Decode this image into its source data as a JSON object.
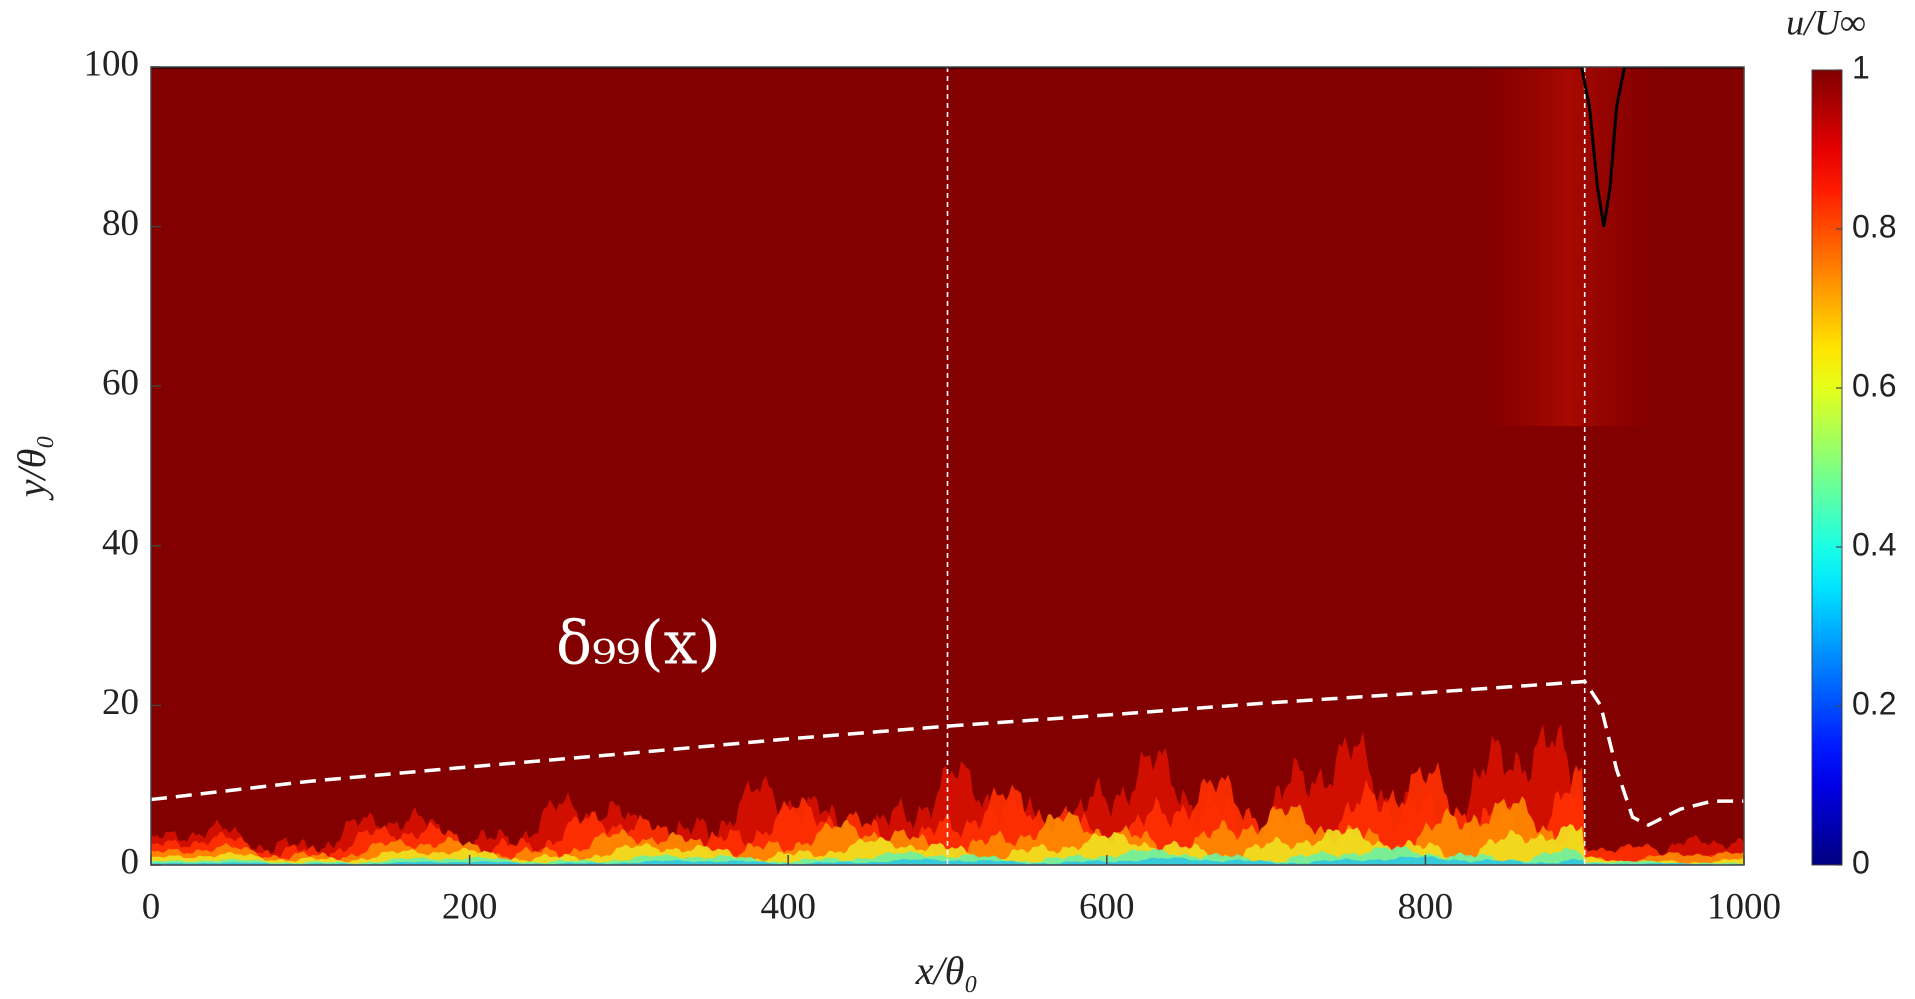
{
  "chart_data": {
    "type": "field",
    "x_label": "x/θ₀",
    "y_label": "y/θ₀",
    "annotation": "δ₉₉(x)",
    "colorbar_label": "u/U∞",
    "colormap": "jet",
    "clim": [
      0,
      1
    ],
    "cticks": [
      0,
      0.2,
      0.4,
      0.6,
      0.8,
      1
    ],
    "xlim": [
      0,
      1000
    ],
    "ylim": [
      0,
      100
    ],
    "xticks": [
      0,
      200,
      400,
      600,
      800,
      1000
    ],
    "yticks": [
      0,
      20,
      40,
      60,
      80,
      100
    ],
    "vlines": [
      500,
      900
    ],
    "series": [
      {
        "color": "#ffffff",
        "dashed": true,
        "x": [
          0,
          100,
          200,
          300,
          400,
          500,
          600,
          700,
          800,
          880,
          900,
          910,
          920,
          930,
          940,
          960,
          980,
          1000
        ],
        "values": [
          8.2,
          10.5,
          12.3,
          14,
          15.8,
          17.4,
          18.8,
          20.3,
          21.6,
          22.7,
          23,
          20,
          12,
          6,
          5,
          7,
          8,
          8
        ]
      },
      {
        "color": "#000000",
        "dashed": false,
        "x": [
          0,
          898,
          903,
          908,
          912,
          916,
          920,
          925,
          1000
        ],
        "values": [
          100,
          100,
          95,
          85,
          80,
          85,
          95,
          100,
          100
        ]
      }
    ]
  }
}
